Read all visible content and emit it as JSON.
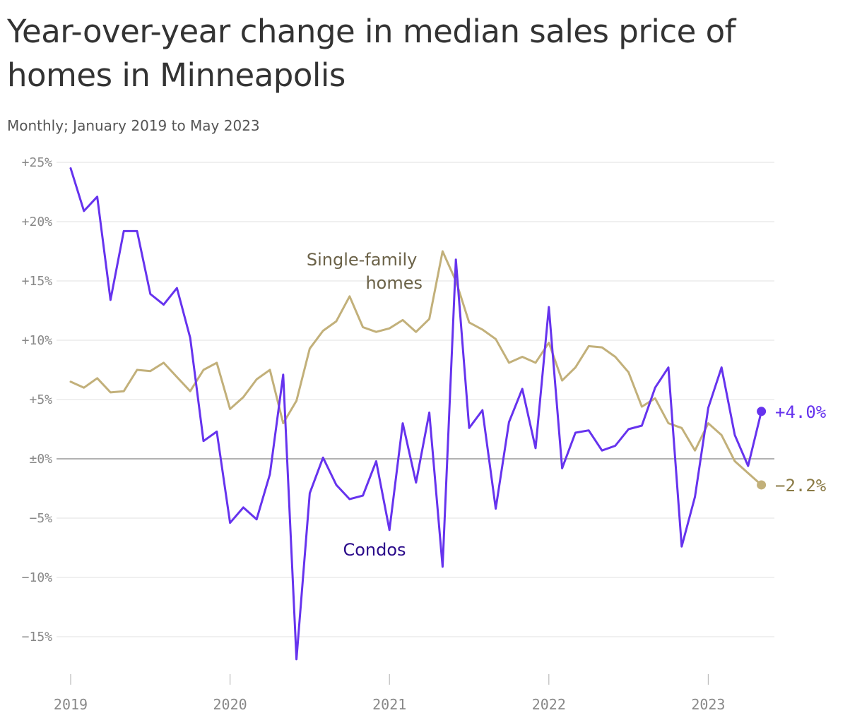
{
  "header": {
    "title": "Year-over-year change in median sales price of homes in Minneapolis",
    "subtitle": "Monthly; January 2019 to May 2023"
  },
  "colors": {
    "condos": "#6633ee",
    "condos_label": "#2a0a8a",
    "single_family": "#c2b07a",
    "single_family_label": "#6b6248",
    "single_family_end": "#8a7a45",
    "grid": "#e6e6e6",
    "zero_line": "#999999"
  },
  "chart_data": {
    "type": "line",
    "x_start": "2019-01",
    "x_end": "2023-05",
    "xticks": [
      "2019",
      "2020",
      "2021",
      "2022",
      "2023"
    ],
    "yticks": [
      {
        "value": 25,
        "label": "+25%"
      },
      {
        "value": 20,
        "label": "+20%"
      },
      {
        "value": 15,
        "label": "+15%"
      },
      {
        "value": 10,
        "label": "+10%"
      },
      {
        "value": 5,
        "label": "+5%"
      },
      {
        "value": 0,
        "label": "±0%"
      },
      {
        "value": -5,
        "label": "−5%"
      },
      {
        "value": -10,
        "label": "−10%"
      },
      {
        "value": -15,
        "label": "−15%"
      }
    ],
    "ylim": [
      -18,
      25.5
    ],
    "grid": true,
    "series": [
      {
        "key": "single_family",
        "name": "Single-family homes",
        "label_lines": [
          "Single-family",
          "homes"
        ],
        "end_label": "−2.2%",
        "values": [
          6.5,
          6.0,
          6.8,
          5.6,
          5.7,
          7.5,
          7.4,
          8.1,
          6.9,
          5.7,
          7.5,
          8.1,
          4.2,
          5.2,
          6.7,
          7.5,
          3.0,
          4.9,
          9.3,
          10.8,
          11.6,
          13.7,
          11.1,
          10.7,
          11.0,
          11.7,
          10.7,
          11.8,
          17.5,
          15.0,
          11.5,
          10.9,
          10.1,
          8.1,
          8.6,
          8.1,
          9.8,
          6.6,
          7.7,
          9.5,
          9.4,
          8.6,
          7.3,
          4.4,
          5.1,
          3.0,
          2.6,
          0.7,
          3.0,
          2.0,
          -0.2,
          -1.2,
          -2.2
        ]
      },
      {
        "key": "condos",
        "name": "Condos",
        "label_lines": [
          "Condos"
        ],
        "end_label": "+4.0%",
        "values": [
          24.5,
          20.9,
          22.1,
          13.4,
          19.2,
          19.2,
          13.9,
          13.0,
          14.4,
          10.2,
          1.5,
          2.3,
          -5.4,
          -4.1,
          -5.1,
          -1.3,
          7.1,
          -16.9,
          -2.9,
          0.1,
          -2.2,
          -3.4,
          -3.1,
          -0.2,
          -6.0,
          3.0,
          -2.0,
          3.9,
          -9.1,
          16.8,
          2.6,
          4.1,
          -4.2,
          3.1,
          5.9,
          0.9,
          12.8,
          -0.8,
          2.2,
          2.4,
          0.7,
          1.1,
          2.5,
          2.8,
          6.0,
          7.7,
          -7.4,
          -3.2,
          4.3,
          7.7,
          2.0,
          -0.6,
          4.0
        ]
      }
    ]
  }
}
